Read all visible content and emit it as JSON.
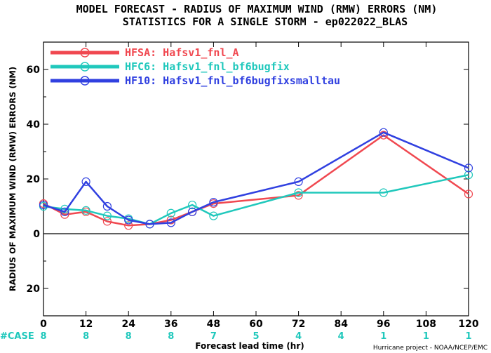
{
  "chart_data": {
    "type": "line",
    "title": "MODEL FORECAST - RADIUS OF MAXIMUM WIND (RMW) ERRORS (NM)",
    "subtitle": "STATISTICS FOR A SINGLE STORM - ep022022_BLAS",
    "xlabel": "Forecast lead time (hr)",
    "ylabel": "RADIUS OF MAXIMUM WIND (RMW) ERRORS (NM)",
    "xlim": [
      0,
      120
    ],
    "ylim": [
      -30,
      70
    ],
    "x_ticks": [
      0,
      12,
      24,
      36,
      48,
      60,
      72,
      84,
      96,
      108,
      120
    ],
    "y_ticks": [
      -20,
      0,
      20,
      40,
      60
    ],
    "y_tick_labels": [
      "20",
      "0",
      "20",
      "40",
      "60"
    ],
    "grid": false,
    "legend_position": "top-left",
    "series": [
      {
        "name": "HFSA: Hafsv1_fnl_A",
        "color": "#f04850",
        "x": [
          0,
          6,
          12,
          18,
          24,
          30,
          36,
          42,
          48,
          72,
          96,
          120
        ],
        "y": [
          11,
          7,
          8,
          4.5,
          3,
          3.5,
          5,
          8,
          11,
          14,
          36,
          14.5
        ]
      },
      {
        "name": "HFC6: Hafsv1_fnl_bf6bugfix",
        "color": "#20c8bc",
        "x": [
          0,
          6,
          12,
          18,
          24,
          30,
          36,
          42,
          48,
          72,
          96,
          120
        ],
        "y": [
          10,
          9,
          8.5,
          6.5,
          5.5,
          3.5,
          7.5,
          10.5,
          6.5,
          15,
          15,
          21.5
        ]
      },
      {
        "name": "HF10: Hafsv1_fnl_bf6bugfixsmalltau",
        "color": "#3040e0",
        "x": [
          0,
          6,
          12,
          18,
          24,
          30,
          36,
          42,
          48,
          72,
          96,
          120
        ],
        "y": [
          10.5,
          8,
          19,
          10,
          5,
          3.5,
          4,
          8,
          11.5,
          19,
          37,
          24
        ]
      }
    ],
    "case_label": "#CASE",
    "case_x": [
      0,
      12,
      24,
      36,
      48,
      60,
      72,
      84,
      96,
      108,
      120
    ],
    "case_counts": [
      "8",
      "8",
      "8",
      "8",
      "7",
      "5",
      "4",
      "4",
      "1",
      "1",
      "1"
    ],
    "credit": "Hurricane project - NOAA/NCEP/EMC"
  }
}
